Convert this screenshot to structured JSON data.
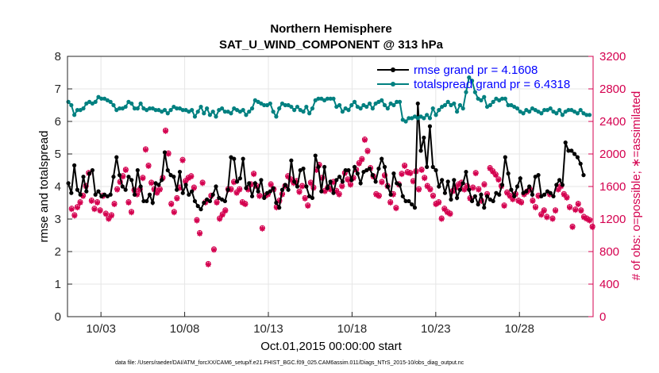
{
  "chart_data": {
    "type": "line",
    "title": "Northern Hemisphere",
    "subtitle": "SAT_U_WIND_COMPONENT @ 313 hPa",
    "xlabel": "Oct.01,2015 00:00:00 start",
    "ylabel_left": "rmse and totalspread",
    "ylabel_right": "# of obs: o=possible; ∗=assimilated",
    "footnote": "data file: /Users/raeder/DAI/ATM_forcXX/CAM6_setup/f.e21.FHIST_BGC.f09_025.CAM6assim.011/Diags_NTrS_2015-10/obs_diag_output.nc",
    "x_start_day": 1,
    "x_end_day": 32.3,
    "xlim": [
      1.0,
      32.4
    ],
    "ylim_left": [
      0,
      8
    ],
    "ylim_right": [
      0,
      3200
    ],
    "xticks": [
      {
        "day": 3,
        "label": "10/03"
      },
      {
        "day": 8,
        "label": "10/08"
      },
      {
        "day": 13,
        "label": "10/13"
      },
      {
        "day": 18,
        "label": "10/18"
      },
      {
        "day": 23,
        "label": "10/23"
      },
      {
        "day": 28,
        "label": "10/28"
      }
    ],
    "yticks_left": [
      "0",
      "1",
      "2",
      "3",
      "4",
      "5",
      "6",
      "7",
      "8"
    ],
    "yticks_right": [
      "0",
      "400",
      "800",
      "1200",
      "1600",
      "2000",
      "2400",
      "2800",
      "3200"
    ],
    "grid": true,
    "legend_position": "top-right",
    "colors": {
      "rmse": "#000000",
      "totalspread": "#008080",
      "obs": "#d4004f",
      "legend_text": "#0000ff",
      "right_axis": "#d4004f",
      "grid": "#e6e6e6"
    },
    "series": [
      {
        "name": "rmse grand pr = 4.1608",
        "axis": "left",
        "marker": "dot",
        "values": [
          4.1,
          3.8,
          4.65,
          3.9,
          3.75,
          4.3,
          3.85,
          4.4,
          4.5,
          3.75,
          3.85,
          3.7,
          3.75,
          3.7,
          3.75,
          4.3,
          4.9,
          4.35,
          4.0,
          3.9,
          4.3,
          4.2,
          3.75,
          4.5,
          4.0,
          3.55,
          3.55,
          3.75,
          3.5,
          4.1,
          4.05,
          4.2,
          5.05,
          4.5,
          4.35,
          4.3,
          3.9,
          4.45,
          3.8,
          4.05,
          3.75,
          3.85,
          3.55,
          3.4,
          3.3,
          3.5,
          3.6,
          3.55,
          3.75,
          4.0,
          3.65,
          3.6,
          3.55,
          3.9,
          4.9,
          4.85,
          4.15,
          4.25,
          4.85,
          3.95,
          4.1,
          3.7,
          4.1,
          3.85,
          4.2,
          3.65,
          3.8,
          3.85,
          3.95,
          3.5,
          3.35,
          3.9,
          4.05,
          3.9,
          4.8,
          4.15,
          4.0,
          4.5,
          4.55,
          4.0,
          3.7,
          3.65,
          4.95,
          4.6,
          3.85,
          4.6,
          3.95,
          4.15,
          3.8,
          4.2,
          4.3,
          4.15,
          4.5,
          4.5,
          4.2,
          4.6,
          4.4,
          4.1,
          4.45,
          4.5,
          4.55,
          4.35,
          4.15,
          4.55,
          4.85,
          4.6,
          4.0,
          3.75,
          4.4,
          4.1,
          4.05,
          3.7,
          3.55,
          3.55,
          3.45,
          3.35,
          6.55,
          5.1,
          5.5,
          4.6,
          5.85,
          4.6,
          4.5,
          4.0,
          4.2,
          3.8,
          4.15,
          3.6,
          4.2,
          3.65,
          3.9,
          4.1,
          4.45,
          3.9,
          3.55,
          3.7,
          3.45,
          3.75,
          3.35,
          3.7,
          3.6,
          3.55,
          3.8,
          3.75,
          4.05,
          4.9,
          4.4,
          3.9,
          3.7,
          4.0,
          4.25,
          3.8,
          3.85,
          4.0,
          3.75,
          4.3,
          4.35,
          3.7,
          3.75,
          3.85,
          3.8,
          3.7,
          4.05,
          4.2,
          4.05,
          5.35,
          5.1,
          5.1,
          5.0,
          4.9,
          4.7,
          4.35
        ],
        "values_stride_note": "values sampled every 0.18 day from day 1.0"
      },
      {
        "name": "totalspread grand pr = 6.4318",
        "axis": "left",
        "marker": "dot",
        "values": [
          6.6,
          6.5,
          6.2,
          6.35,
          6.35,
          6.4,
          6.55,
          6.6,
          6.55,
          6.6,
          6.75,
          6.7,
          6.7,
          6.65,
          6.6,
          6.5,
          6.35,
          6.4,
          6.4,
          6.45,
          6.6,
          6.55,
          6.4,
          6.4,
          6.55,
          6.4,
          6.35,
          6.4,
          6.4,
          6.35,
          6.35,
          6.3,
          6.35,
          6.25,
          6.35,
          6.45,
          6.4,
          6.4,
          6.35,
          6.35,
          6.3,
          6.35,
          6.15,
          6.3,
          6.45,
          6.25,
          6.4,
          6.2,
          6.3,
          6.15,
          6.35,
          6.4,
          6.3,
          6.3,
          6.25,
          6.4,
          6.35,
          6.3,
          6.35,
          6.2,
          6.3,
          6.4,
          6.65,
          6.6,
          6.55,
          6.5,
          6.5,
          6.55,
          6.3,
          6.15,
          6.4,
          6.55,
          6.5,
          6.5,
          6.45,
          6.35,
          6.45,
          6.35,
          6.3,
          6.45,
          6.25,
          6.4,
          6.65,
          6.7,
          6.7,
          6.65,
          6.7,
          6.7,
          6.7,
          6.45,
          6.5,
          6.3,
          6.4,
          6.35,
          6.5,
          6.6,
          6.45,
          6.4,
          6.5,
          6.45,
          6.55,
          6.4,
          6.55,
          6.6,
          6.65,
          6.5,
          6.4,
          6.55,
          6.5,
          6.6,
          6.6,
          6.05,
          6.0,
          6.1,
          6.1,
          6.15,
          6.1,
          6.15,
          6.1,
          6.2,
          6.1,
          6.4,
          6.2,
          6.35,
          6.45,
          6.5,
          6.6,
          6.5,
          6.55,
          6.3,
          6.5,
          6.4,
          6.9,
          7.35,
          7.25,
          6.9,
          6.7,
          6.65,
          6.75,
          6.45,
          6.5,
          6.6,
          6.7,
          6.65,
          6.7,
          6.7,
          6.5,
          6.5,
          6.45,
          6.4,
          6.3,
          6.25,
          6.35,
          6.3,
          6.4,
          6.35,
          6.3,
          6.25,
          6.35,
          6.35,
          6.4,
          6.3,
          6.25,
          6.35,
          6.2,
          6.3,
          6.35,
          6.35,
          6.3,
          6.25,
          6.35,
          6.25,
          6.2,
          6.2
        ],
        "values_stride_note": "values sampled every 0.18 day from day 1.0"
      }
    ],
    "obs_assimilated": {
      "name": "# of obs assimilated",
      "axis": "right",
      "marker": "asterisk",
      "values": [
        1320,
        1240,
        1340,
        1400,
        1480,
        1600,
        1760,
        1420,
        1320,
        1400,
        1300,
        1480,
        1260,
        1200,
        1240,
        1380,
        1560,
        1650,
        1720,
        1800,
        1400,
        1280,
        1550,
        1500,
        1560,
        1700,
        2050,
        1850,
        1640,
        1560,
        1520,
        1560,
        1700,
        2280,
        2000,
        1380,
        1280,
        1450,
        1580,
        1920,
        1660,
        1700,
        1720,
        1580,
        1180,
        1020,
        1640,
        1400,
        640,
        1480,
        820,
        1400,
        1200,
        1250,
        1300,
        1560,
        1560,
        1650,
        1520,
        1560,
        1400,
        1380,
        1560,
        1620,
        1750,
        1600,
        1480,
        1080,
        1480,
        1500,
        1620,
        1560,
        1340,
        1420,
        1500,
        1600,
        1720,
        1680,
        1640,
        1660,
        1530,
        1600,
        1450,
        1360,
        1640,
        1580,
        1800,
        1860,
        1700,
        1540,
        1580,
        1560,
        1650,
        1540,
        1500,
        1600,
        1760,
        1680,
        1620,
        1700,
        1800,
        1880,
        1930,
        2170,
        2030,
        1820,
        1720,
        1500,
        1480,
        1650,
        1730,
        1600,
        1400,
        1500,
        1330,
        1620,
        1750,
        1850,
        1770,
        1760,
        1660,
        1780,
        1560,
        1800,
        1700,
        1600,
        1560,
        1480,
        1380,
        1400,
        1200,
        1320,
        1280,
        1260,
        1540,
        1580,
        1620,
        1640,
        1560,
        1600,
        1450,
        1580,
        1760,
        1560,
        1420,
        1620,
        1500,
        1820,
        1780,
        1740,
        1680,
        1600,
        1360,
        1520,
        1480,
        1440,
        1500,
        1420,
        1400,
        1500,
        1530,
        1560,
        1420,
        1340,
        1480,
        1250,
        1300,
        1220,
        1500,
        1200,
        1300,
        1560,
        1600,
        1500,
        1460,
        1340,
        1100,
        1310,
        1380,
        1300,
        1220,
        1200,
        1180,
        1100,
        1070,
        1080
      ],
      "values_stride_note": "values sampled every 0.17 day from day 1.0"
    },
    "obs_possible": {
      "name": "# of obs possible",
      "axis": "right",
      "marker": "circle",
      "values": [
        1330,
        1250,
        1350,
        1410,
        1490,
        1610,
        1770,
        1430,
        1330,
        1410,
        1310,
        1490,
        1270,
        1210,
        1250,
        1390,
        1570,
        1660,
        1730,
        1810,
        1410,
        1290,
        1560,
        1510,
        1570,
        1710,
        2060,
        1860,
        1650,
        1570,
        1530,
        1570,
        1710,
        2290,
        2010,
        1390,
        1290,
        1460,
        1590,
        1930,
        1670,
        1710,
        1730,
        1590,
        1190,
        1030,
        1650,
        1410,
        650,
        1490,
        830,
        1410,
        1210,
        1260,
        1310,
        1570,
        1570,
        1660,
        1530,
        1570,
        1410,
        1390,
        1570,
        1630,
        1760,
        1610,
        1490,
        1090,
        1490,
        1510,
        1630,
        1570,
        1350,
        1430,
        1510,
        1610,
        1730,
        1690,
        1650,
        1670,
        1540,
        1610,
        1460,
        1370,
        1650,
        1590,
        1810,
        1870,
        1710,
        1550,
        1590,
        1570,
        1660,
        1550,
        1510,
        1610,
        1770,
        1690,
        1630,
        1710,
        1810,
        1890,
        1940,
        2180,
        2040,
        1830,
        1730,
        1510,
        1490,
        1660,
        1740,
        1610,
        1410,
        1510,
        1340,
        1630,
        1760,
        1860,
        1780,
        1770,
        1670,
        1790,
        1570,
        1810,
        1710,
        1610,
        1570,
        1490,
        1390,
        1410,
        1210,
        1330,
        1290,
        1270,
        1550,
        1590,
        1630,
        1650,
        1570,
        1610,
        1460,
        1590,
        1770,
        1570,
        1430,
        1630,
        1510,
        1830,
        1790,
        1750,
        1690,
        1610,
        1370,
        1530,
        1490,
        1450,
        1510,
        1430,
        1410,
        1510,
        1540,
        1570,
        1430,
        1350,
        1490,
        1260,
        1310,
        1230,
        1510,
        1210,
        1310,
        1570,
        1610,
        1510,
        1470,
        1350,
        1110,
        1320,
        1390,
        1310,
        1230,
        1210,
        1190,
        1110,
        1080,
        1090
      ],
      "values_stride_note": "values sampled every 0.17 day from day 1.0"
    }
  }
}
